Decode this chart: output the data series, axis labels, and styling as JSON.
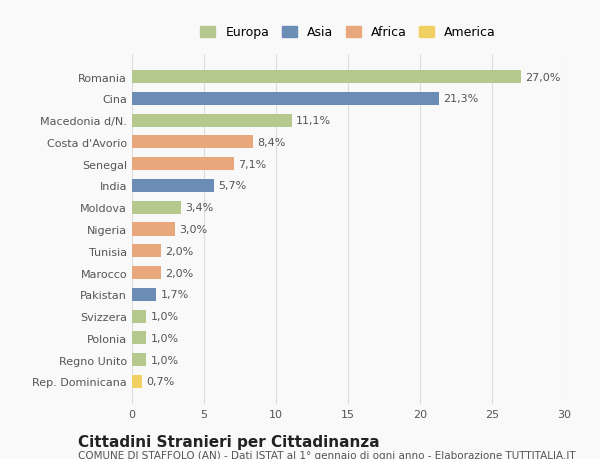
{
  "countries": [
    "Romania",
    "Cina",
    "Macedonia d/N.",
    "Costa d'Avorio",
    "Senegal",
    "India",
    "Moldova",
    "Nigeria",
    "Tunisia",
    "Marocco",
    "Pakistan",
    "Svizzera",
    "Polonia",
    "Regno Unito",
    "Rep. Dominicana"
  ],
  "values": [
    27.0,
    21.3,
    11.1,
    8.4,
    7.1,
    5.7,
    3.4,
    3.0,
    2.0,
    2.0,
    1.7,
    1.0,
    1.0,
    1.0,
    0.7
  ],
  "labels": [
    "27,0%",
    "21,3%",
    "11,1%",
    "8,4%",
    "7,1%",
    "5,7%",
    "3,4%",
    "3,0%",
    "2,0%",
    "2,0%",
    "1,7%",
    "1,0%",
    "1,0%",
    "1,0%",
    "0,7%"
  ],
  "continents": [
    "Europa",
    "Asia",
    "Europa",
    "Africa",
    "Africa",
    "Asia",
    "Europa",
    "Africa",
    "Africa",
    "Africa",
    "Asia",
    "Europa",
    "Europa",
    "Europa",
    "America"
  ],
  "colors": {
    "Europa": "#b5c98e",
    "Asia": "#6b8db5",
    "Africa": "#e8a87c",
    "America": "#f0d060"
  },
  "legend_order": [
    "Europa",
    "Asia",
    "Africa",
    "America"
  ],
  "xlim": [
    0,
    30
  ],
  "xticks": [
    0,
    5,
    10,
    15,
    20,
    25,
    30
  ],
  "title": "Cittadini Stranieri per Cittadinanza",
  "subtitle": "COMUNE DI STAFFOLO (AN) - Dati ISTAT al 1° gennaio di ogni anno - Elaborazione TUTTITALIA.IT",
  "bg_color": "#f9f9f9",
  "grid_color": "#dddddd",
  "bar_height": 0.6,
  "title_fontsize": 11,
  "subtitle_fontsize": 7.5,
  "label_fontsize": 8,
  "tick_fontsize": 8,
  "legend_fontsize": 9
}
